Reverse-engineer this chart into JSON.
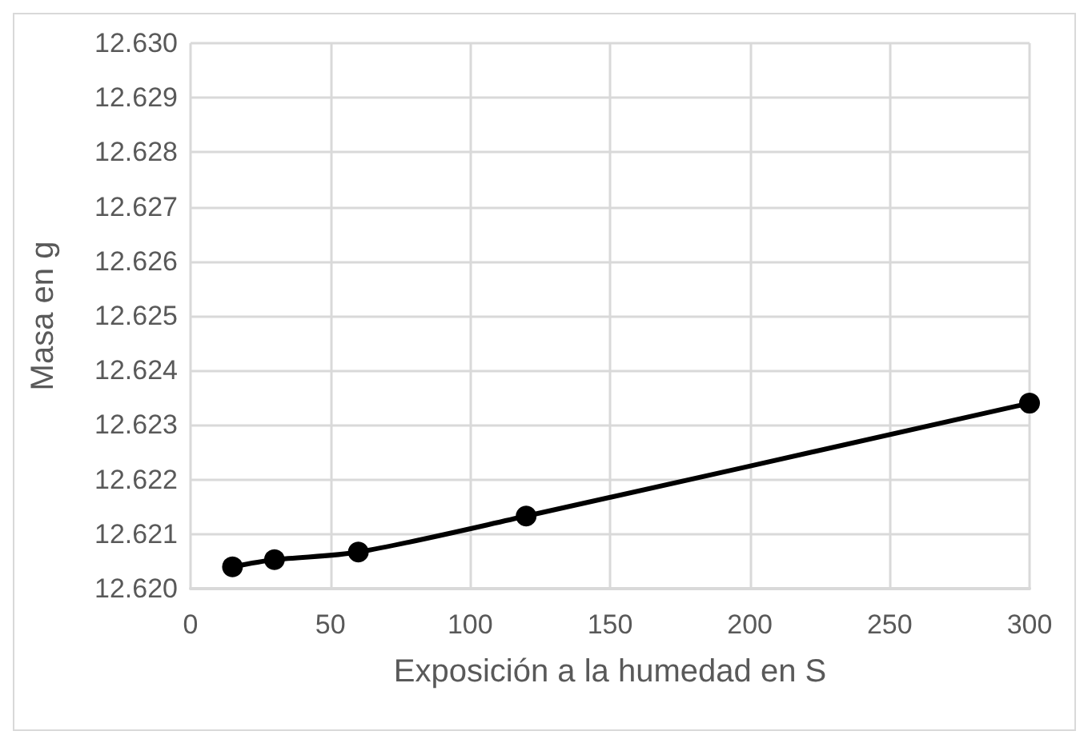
{
  "chart_data": {
    "type": "line",
    "xlabel": "Exposición a la humedad en S",
    "ylabel": "Masa en g",
    "x": [
      15,
      30,
      60,
      120,
      300
    ],
    "series": [
      {
        "color": "#000000",
        "values": [
          12.6204,
          12.62053,
          12.62067,
          12.62133,
          12.6234
        ]
      }
    ],
    "xlim": [
      0,
      300
    ],
    "xticks": [
      0,
      50,
      100,
      150,
      200,
      250,
      300
    ],
    "ylim": [
      12.62,
      12.63
    ],
    "yticks": [
      {
        "value": 12.62,
        "label": "12.620"
      },
      {
        "value": 12.621,
        "label": "12.621"
      },
      {
        "value": 12.622,
        "label": "12.622"
      },
      {
        "value": 12.623,
        "label": "12.623"
      },
      {
        "value": 12.624,
        "label": "12.624"
      },
      {
        "value": 12.625,
        "label": "12.625"
      },
      {
        "value": 12.626,
        "label": "12.626"
      },
      {
        "value": 12.627,
        "label": "12.627"
      },
      {
        "value": 12.628,
        "label": "12.628"
      },
      {
        "value": 12.629,
        "label": "12.629"
      },
      {
        "value": 12.63,
        "label": "12.630"
      }
    ],
    "grid": true,
    "marker": "circle",
    "line_style": "solid"
  }
}
